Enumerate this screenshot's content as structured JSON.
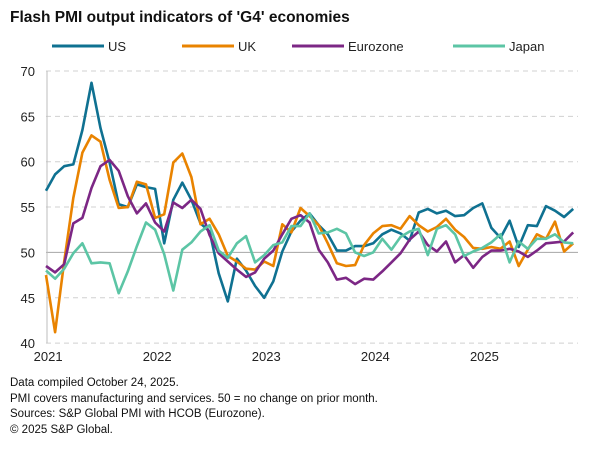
{
  "chart_data": {
    "type": "line",
    "title": "Flash PMI output indicators of 'G4' economies",
    "x_start": "2020-12",
    "x_end": "2025-10",
    "x_tick_labels": [
      "2021",
      "2022",
      "2023",
      "2024",
      "2025"
    ],
    "ylim": [
      40,
      70
    ],
    "y_ticks": [
      40,
      45,
      50,
      55,
      60,
      65,
      70
    ],
    "reference_line": 50,
    "grid": "horizontal dashed",
    "legend": "top",
    "series": [
      {
        "name": "US",
        "color": "#0f7191",
        "values": [
          56.8,
          58.6,
          59.5,
          59.7,
          63.5,
          68.7,
          63.7,
          59.9,
          55.3,
          55.0,
          57.5,
          57.2,
          57.0,
          51.0,
          55.8,
          57.7,
          55.8,
          53.2,
          52.3,
          47.7,
          44.6,
          49.3,
          48.0,
          46.3,
          45.0,
          46.8,
          50.1,
          52.3,
          53.5,
          54.3,
          53.0,
          52.0,
          50.2,
          50.2,
          50.7,
          50.7,
          51.0,
          52.0,
          52.5,
          52.1,
          51.3,
          54.4,
          54.8,
          54.3,
          54.6,
          54.0,
          54.1,
          54.9,
          55.4,
          52.7,
          51.6,
          53.5,
          50.6,
          53.0,
          52.9,
          55.1,
          54.6,
          53.9,
          54.8
        ]
      },
      {
        "name": "UK",
        "color": "#e98300",
        "values": [
          47.5,
          41.2,
          49.0,
          56.0,
          61.0,
          62.9,
          62.2,
          58.0,
          54.9,
          55.0,
          57.8,
          57.5,
          53.8,
          54.2,
          59.9,
          60.9,
          58.3,
          53.1,
          53.7,
          52.0,
          49.6,
          49.0,
          48.2,
          48.1,
          49.0,
          48.5,
          53.1,
          52.2,
          54.9,
          54.0,
          53.0,
          51.0,
          48.8,
          48.5,
          48.6,
          50.8,
          52.1,
          52.9,
          53.0,
          52.6,
          54.0,
          53.0,
          52.3,
          52.8,
          53.7,
          52.5,
          51.7,
          50.5,
          50.4,
          50.6,
          50.4,
          51.2,
          48.5,
          50.3,
          52.0,
          51.5,
          53.4,
          50.1,
          51.0
        ]
      },
      {
        "name": "Eurozone",
        "color": "#7c2785",
        "values": [
          48.5,
          47.8,
          48.7,
          53.2,
          53.8,
          57.1,
          59.5,
          60.2,
          59.0,
          56.2,
          54.3,
          55.4,
          53.3,
          52.3,
          55.5,
          54.9,
          55.8,
          54.8,
          51.9,
          49.9,
          49.0,
          48.1,
          47.3,
          47.8,
          49.3,
          50.2,
          52.0,
          53.7,
          54.1,
          53.3,
          50.3,
          48.9,
          47.0,
          47.2,
          46.5,
          47.1,
          47.0,
          47.9,
          48.9,
          49.9,
          51.4,
          52.3,
          50.8,
          50.1,
          51.2,
          48.9,
          49.7,
          48.3,
          49.5,
          50.2,
          50.2,
          50.4,
          50.1,
          49.5,
          50.2,
          51.0,
          51.1,
          51.2,
          52.2
        ]
      },
      {
        "name": "Japan",
        "color": "#5cc5a5",
        "values": [
          48.0,
          47.1,
          48.2,
          49.9,
          51.0,
          48.8,
          48.9,
          48.8,
          45.5,
          47.9,
          50.7,
          53.3,
          52.5,
          49.8,
          45.8,
          50.3,
          51.1,
          52.3,
          53.0,
          50.2,
          49.4,
          51.0,
          51.8,
          48.9,
          49.7,
          50.8,
          51.1,
          52.9,
          52.9,
          54.3,
          52.1,
          52.2,
          52.6,
          52.1,
          50.0,
          49.6,
          50.0,
          51.5,
          50.3,
          51.7,
          52.3,
          52.6,
          49.7,
          52.6,
          53.0,
          52.0,
          49.6,
          50.1,
          50.5,
          51.1,
          52.0,
          48.9,
          51.2,
          50.4,
          51.5,
          51.5,
          52.0,
          51.1,
          51.0
        ]
      }
    ]
  },
  "notes": [
    "Data compiled October 24, 2025.",
    "PMI covers manufacturing and services. 50 = no change on prior month.",
    "Sources: S&P Global PMI with HCOB (Eurozone).",
    "© 2025 S&P Global."
  ]
}
